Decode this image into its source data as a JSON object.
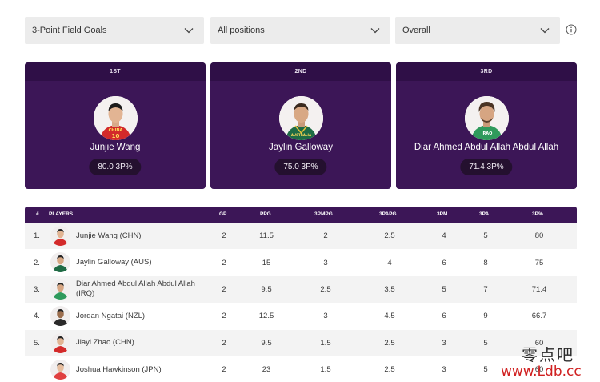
{
  "filters": {
    "stat": "3-Point Field Goals",
    "position": "All positions",
    "scope": "Overall"
  },
  "leaders": [
    {
      "rank": "1ST",
      "name": "Junjie Wang",
      "stat": "80.0 3P%",
      "jersey": "CHINA",
      "jersey_num": "10",
      "jersey_color": "#d32a2a"
    },
    {
      "rank": "2ND",
      "name": "Jaylin Galloway",
      "stat": "75.0 3P%",
      "jersey": "AUSTRALIA",
      "jersey_num": "",
      "jersey_color": "#1f6b45"
    },
    {
      "rank": "3RD",
      "name": "Diar Ahmed Abdul Allah Abdul Allah",
      "stat": "71.4 3P%",
      "jersey": "IRAQ",
      "jersey_num": "",
      "jersey_color": "#2f9a5c"
    }
  ],
  "table": {
    "headers": [
      "#",
      "PLAYERS",
      "GP",
      "PPG",
      "3PMPG",
      "3PAPG",
      "3PM",
      "3PA",
      "3P%"
    ],
    "rows": [
      {
        "idx": "1.",
        "name": "Junjie Wang (CHN)",
        "gp": "2",
        "ppg": "11.5",
        "pmpg": "2",
        "papg": "2.5",
        "pm": "4",
        "pa": "5",
        "pct": "80"
      },
      {
        "idx": "2.",
        "name": "Jaylin Galloway (AUS)",
        "gp": "2",
        "ppg": "15",
        "pmpg": "3",
        "papg": "4",
        "pm": "6",
        "pa": "8",
        "pct": "75"
      },
      {
        "idx": "3.",
        "name": "Diar Ahmed Abdul Allah Abdul Allah (IRQ)",
        "gp": "2",
        "ppg": "9.5",
        "pmpg": "2.5",
        "papg": "3.5",
        "pm": "5",
        "pa": "7",
        "pct": "71.4"
      },
      {
        "idx": "4.",
        "name": "Jordan Ngatai (NZL)",
        "gp": "2",
        "ppg": "12.5",
        "pmpg": "3",
        "papg": "4.5",
        "pm": "6",
        "pa": "9",
        "pct": "66.7"
      },
      {
        "idx": "5.",
        "name": "Jiayi Zhao (CHN)",
        "gp": "2",
        "ppg": "9.5",
        "pmpg": "1.5",
        "papg": "2.5",
        "pm": "3",
        "pa": "5",
        "pct": "60"
      },
      {
        "idx": "",
        "name": "Joshua Hawkinson (JPN)",
        "gp": "2",
        "ppg": "23",
        "pmpg": "1.5",
        "papg": "2.5",
        "pm": "3",
        "pa": "5",
        "pct": "60"
      }
    ]
  },
  "watermark": {
    "line1": "零点吧",
    "line2": "www.Ldb.cc"
  },
  "colors": {
    "primary": "#3c1657",
    "header_dark": "#2f0f47",
    "pill": "#24102f",
    "row_alt": "#f3f3f3"
  }
}
